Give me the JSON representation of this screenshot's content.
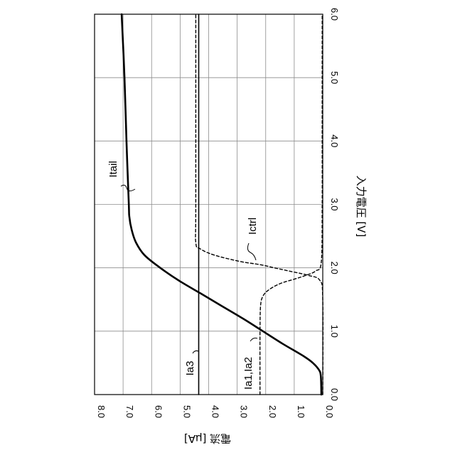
{
  "chart_data": {
    "type": "line",
    "orientation": "rotated-90-clockwise",
    "xlabel": "入力電圧 [V]",
    "ylabel": "電流 [μA]",
    "xlim": [
      0.0,
      6.0
    ],
    "ylim": [
      0.0,
      8.0
    ],
    "x_ticks": [
      "0.0",
      "1.0",
      "2.0",
      "3.0",
      "4.0",
      "5.0",
      "6.0"
    ],
    "y_ticks": [
      "0.0",
      "1.0",
      "2.0",
      "3.0",
      "4.0",
      "5.0",
      "6.0",
      "7.0",
      "8.0"
    ],
    "grid": true,
    "series": [
      {
        "name": "Itail",
        "style": "solid-thick",
        "x": [
          0.0,
          0.3,
          0.4,
          0.5,
          0.6,
          0.8,
          1.0,
          1.2,
          1.4,
          1.6,
          1.8,
          2.0,
          2.2,
          2.4,
          2.6,
          2.8,
          3.0,
          4.0,
          5.0,
          6.0
        ],
        "y": [
          0.05,
          0.07,
          0.15,
          0.35,
          0.65,
          1.4,
          2.1,
          2.8,
          3.55,
          4.3,
          5.05,
          5.7,
          6.25,
          6.55,
          6.7,
          6.78,
          6.8,
          6.88,
          6.95,
          7.05
        ]
      },
      {
        "name": "Ia3",
        "style": "solid",
        "x": [
          0.0,
          1.0,
          2.0,
          3.0,
          4.0,
          5.0,
          6.0
        ],
        "y": [
          4.35,
          4.35,
          4.35,
          4.35,
          4.35,
          4.35,
          4.35
        ]
      },
      {
        "name": "Ia1,Ia2",
        "style": "dashed",
        "x": [
          0.0,
          1.0,
          1.4,
          1.55,
          1.65,
          1.75,
          1.82,
          1.88,
          1.95,
          2.1,
          3.0,
          4.0,
          5.0,
          6.0
        ],
        "y": [
          2.2,
          2.2,
          2.18,
          2.1,
          1.9,
          1.5,
          1.0,
          0.6,
          0.25,
          0.05,
          0.02,
          0.02,
          0.02,
          0.02
        ]
      },
      {
        "name": "Ictrl",
        "style": "dashed",
        "x": [
          0.0,
          1.5,
          1.8,
          1.88,
          1.95,
          2.0,
          2.05,
          2.1,
          2.2,
          2.3,
          2.4,
          3.0,
          6.0
        ],
        "y": [
          0.0,
          0.0,
          0.1,
          0.5,
          1.2,
          1.7,
          2.2,
          2.9,
          3.8,
          4.3,
          4.45,
          4.45,
          4.45
        ]
      }
    ],
    "annotations": [
      {
        "text": "Itail",
        "series": "Itail"
      },
      {
        "text": "Ictrl",
        "series": "Ictrl"
      },
      {
        "text": "Ia3",
        "series": "Ia3"
      },
      {
        "text": "Ia1,Ia2",
        "series": "Ia1,Ia2"
      }
    ]
  }
}
